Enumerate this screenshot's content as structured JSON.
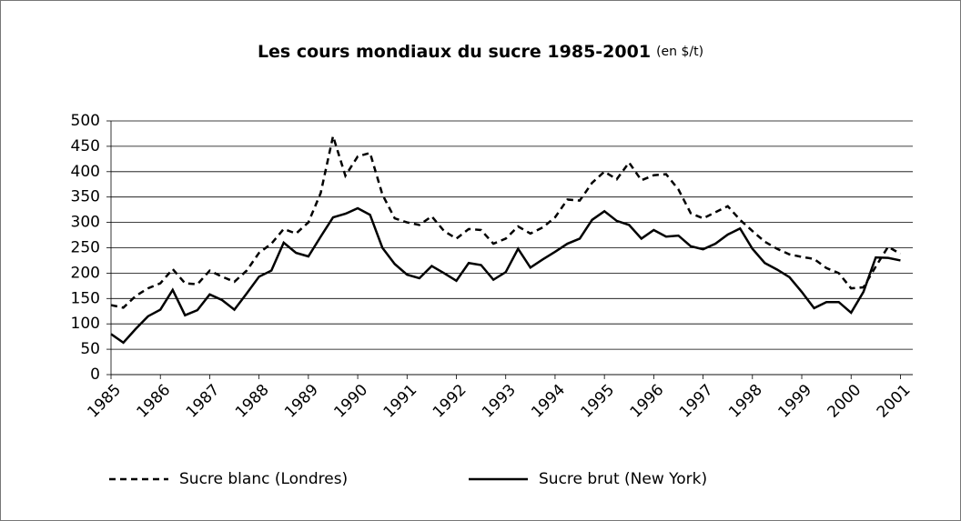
{
  "chart_data": {
    "type": "line",
    "title": "Les cours mondiaux du sucre 1985-2001",
    "subtitle": "(en $/t)",
    "x": [
      1985,
      1985.25,
      1985.5,
      1985.75,
      1986,
      1986.25,
      1986.5,
      1986.75,
      1987,
      1987.25,
      1987.5,
      1987.75,
      1988,
      1988.25,
      1988.5,
      1988.75,
      1989,
      1989.25,
      1989.5,
      1989.75,
      1990,
      1990.25,
      1990.5,
      1990.75,
      1991,
      1991.25,
      1991.5,
      1991.75,
      1992,
      1992.25,
      1992.5,
      1992.75,
      1993,
      1993.25,
      1993.5,
      1993.75,
      1994,
      1994.25,
      1994.5,
      1994.75,
      1995,
      1995.25,
      1995.5,
      1995.75,
      1996,
      1996.25,
      1996.5,
      1996.75,
      1997,
      1997.25,
      1997.5,
      1997.75,
      1998,
      1998.25,
      1998.5,
      1998.75,
      1999,
      1999.25,
      1999.5,
      1999.75,
      2000,
      2000.25,
      2000.5,
      2000.75,
      2001
    ],
    "series": [
      {
        "name": "Sucre blanc (Londres)",
        "color": "#000000",
        "dash": true,
        "values": [
          137,
          132,
          155,
          170,
          180,
          208,
          180,
          178,
          205,
          193,
          183,
          205,
          240,
          258,
          287,
          278,
          300,
          358,
          470,
          392,
          430,
          437,
          355,
          308,
          300,
          295,
          312,
          283,
          268,
          287,
          285,
          258,
          268,
          292,
          278,
          290,
          310,
          345,
          343,
          378,
          400,
          385,
          418,
          383,
          393,
          395,
          365,
          318,
          308,
          320,
          332,
          305,
          283,
          262,
          248,
          237,
          232,
          228,
          210,
          200,
          170,
          172,
          213,
          252,
          238
        ]
      },
      {
        "name": "Sucre brut (New York)",
        "color": "#000000",
        "dash": false,
        "values": [
          80,
          63,
          90,
          115,
          128,
          167,
          117,
          127,
          158,
          147,
          128,
          160,
          193,
          205,
          260,
          240,
          233,
          272,
          310,
          317,
          328,
          315,
          250,
          218,
          197,
          190,
          214,
          200,
          185,
          220,
          216,
          187,
          202,
          248,
          211,
          227,
          242,
          258,
          268,
          305,
          322,
          303,
          295,
          268,
          285,
          272,
          274,
          253,
          247,
          258,
          276,
          288,
          248,
          220,
          207,
          192,
          163,
          131,
          143,
          143,
          122,
          163,
          231,
          230,
          225
        ]
      }
    ],
    "xlim": [
      1985,
      2001.25
    ],
    "xticks": [
      1985,
      1986,
      1987,
      1988,
      1989,
      1990,
      1991,
      1992,
      1993,
      1994,
      1995,
      1996,
      1997,
      1998,
      1999,
      2000,
      2001
    ],
    "ylim": [
      0,
      500
    ],
    "yticks": [
      0,
      50,
      100,
      150,
      200,
      250,
      300,
      350,
      400,
      450,
      500
    ],
    "grid": true,
    "legend": "bottom"
  }
}
